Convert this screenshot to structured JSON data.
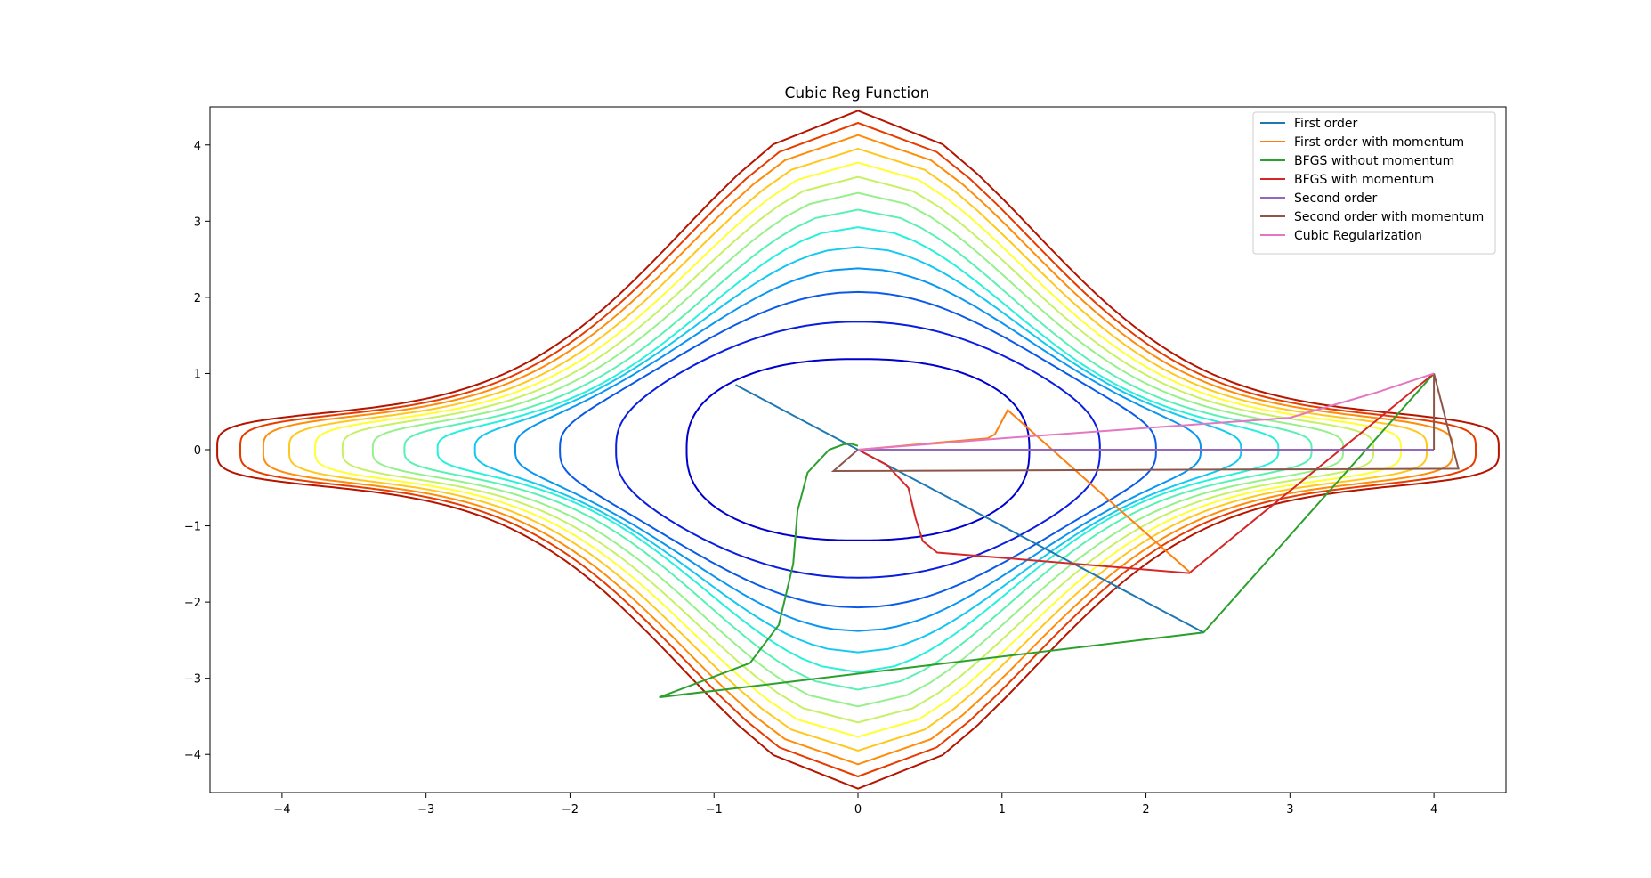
{
  "chart_data": {
    "type": "line",
    "title": "Cubic Reg Function",
    "xlabel": "",
    "ylabel": "",
    "xlim": [
      -4.5,
      4.5
    ],
    "ylim": [
      -4.5,
      4.5
    ],
    "xticks": [
      -4,
      -3,
      -2,
      -1,
      0,
      1,
      2,
      3,
      4
    ],
    "yticks": [
      -4,
      -3,
      -2,
      -1,
      0,
      1,
      2,
      3,
      4
    ],
    "xtick_labels": [
      "−4",
      "−3",
      "−2",
      "−1",
      "0",
      "1",
      "2",
      "3",
      "4"
    ],
    "ytick_labels": [
      "−4",
      "−3",
      "−2",
      "−1",
      "0",
      "1",
      "2",
      "3",
      "4"
    ],
    "grid": false,
    "legend_position": "top-right",
    "contours": {
      "levels_x_extent": [
        1.19,
        1.68,
        2.07,
        2.38,
        2.66,
        2.92,
        3.15,
        3.37,
        3.58,
        3.77,
        3.95,
        4.13,
        4.29,
        4.45
      ],
      "colors": [
        "#0000cc",
        "#0a1ee0",
        "#0a5ae8",
        "#0a96f0",
        "#14c8f0",
        "#28f0dc",
        "#5af0b4",
        "#96f08c",
        "#c8f064",
        "#ffff32",
        "#ffc81e",
        "#ff8c0a",
        "#e63c00",
        "#b41400",
        "#800000"
      ]
    },
    "series": [
      {
        "name": "First order",
        "color": "#1f77b4",
        "x": [
          -0.85,
          0.0,
          2.4
        ],
        "y": [
          0.85,
          0.0,
          -2.4
        ]
      },
      {
        "name": "First order with momentum",
        "color": "#ff7f0e",
        "x": [
          0.0,
          0.3,
          0.6,
          0.9,
          0.95,
          1.04,
          2.3
        ],
        "y": [
          0.0,
          0.05,
          0.1,
          0.15,
          0.2,
          0.52,
          -1.6
        ]
      },
      {
        "name": "BFGS without momentum",
        "color": "#2ca02c",
        "x": [
          0.0,
          -0.05,
          -0.1,
          -0.2,
          -0.35,
          -0.42,
          -0.45,
          -0.55,
          -0.75,
          -1.38,
          2.4,
          4.0
        ],
        "y": [
          0.05,
          0.08,
          0.07,
          0.0,
          -0.3,
          -0.8,
          -1.5,
          -2.3,
          -2.8,
          -3.25,
          -2.4,
          1.0
        ]
      },
      {
        "name": "BFGS with momentum",
        "color": "#d62728",
        "x": [
          0.0,
          0.2,
          0.35,
          0.4,
          0.45,
          0.55,
          2.3,
          4.0
        ],
        "y": [
          0.0,
          -0.2,
          -0.5,
          -0.9,
          -1.2,
          -1.35,
          -1.62,
          1.0
        ]
      },
      {
        "name": "Second order",
        "color": "#9467bd",
        "x": [
          0.0,
          4.0
        ],
        "y": [
          0.0,
          0.0
        ]
      },
      {
        "name": "Second order with momentum",
        "color": "#8c564b",
        "x": [
          0.0,
          -0.17,
          4.17,
          4.0,
          4.0
        ],
        "y": [
          0.0,
          -0.28,
          -0.25,
          1.0,
          0.0
        ]
      },
      {
        "name": "Cubic Regularization",
        "color": "#e377c2",
        "x": [
          0.0,
          1.0,
          3.0,
          3.6,
          4.0
        ],
        "y": [
          0.0,
          0.15,
          0.42,
          0.75,
          1.0
        ]
      }
    ]
  }
}
